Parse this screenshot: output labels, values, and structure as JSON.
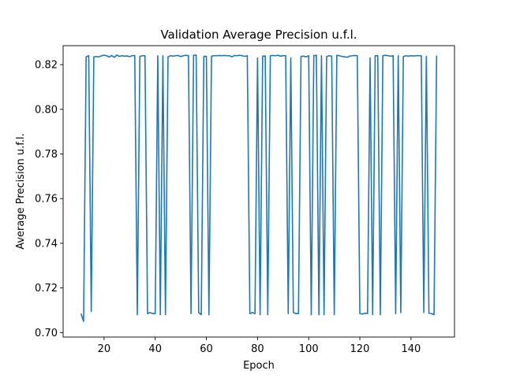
{
  "chart_data": {
    "type": "line",
    "title": "Validation Average Precision u.f.l.",
    "xlabel": "Epoch",
    "ylabel": "Average Precision u.f.l.",
    "xlim": [
      4,
      157
    ],
    "ylim": [
      0.698,
      0.8285
    ],
    "xticks": [
      20,
      40,
      60,
      80,
      100,
      120,
      140
    ],
    "yticks": [
      0.7,
      0.72,
      0.74,
      0.76,
      0.78,
      0.8,
      0.82
    ],
    "ytick_labels": [
      "0.70",
      "0.72",
      "0.74",
      "0.76",
      "0.78",
      "0.80",
      "0.82"
    ],
    "grid": false,
    "line_color": "#1f77b4",
    "series": [
      {
        "x": [
          11,
          12,
          13,
          14,
          15,
          16,
          17,
          18,
          19,
          20,
          21,
          22,
          23,
          24,
          25,
          26,
          27,
          28,
          29,
          30,
          31,
          32,
          33,
          34,
          35,
          36,
          37,
          38,
          39,
          40,
          41,
          42,
          43,
          44,
          45,
          46,
          47,
          48,
          49,
          50,
          51,
          52,
          53,
          54,
          55,
          56,
          57,
          58,
          59,
          60,
          61,
          62,
          63,
          64,
          65,
          66,
          67,
          68,
          69,
          70,
          71,
          72,
          73,
          74,
          75,
          76,
          77,
          78,
          79,
          80,
          81,
          82,
          83,
          84,
          85,
          86,
          87,
          88,
          89,
          90,
          91,
          92,
          93,
          94,
          95,
          96,
          97,
          98,
          99,
          100,
          101,
          102,
          103,
          104,
          105,
          106,
          107,
          108,
          109,
          110,
          111,
          112,
          113,
          114,
          115,
          116,
          117,
          118,
          119,
          120,
          121,
          122,
          123,
          124,
          125,
          126,
          127,
          128,
          129,
          130,
          131,
          132,
          133,
          134,
          135,
          136,
          137,
          138,
          139,
          140,
          141,
          142,
          143,
          144,
          145,
          146,
          147,
          148,
          149,
          150
        ],
        "y": [
          0.7085,
          0.705,
          0.8235,
          0.824,
          0.7095,
          0.8235,
          0.8236,
          0.8235,
          0.824,
          0.8242,
          0.824,
          0.8234,
          0.8241,
          0.8233,
          0.8243,
          0.8237,
          0.824,
          0.8238,
          0.8239,
          0.8236,
          0.824,
          0.8241,
          0.708,
          0.8237,
          0.824,
          0.824,
          0.7085,
          0.709,
          0.7085,
          0.7085,
          0.824,
          0.708,
          0.824,
          0.708,
          0.8235,
          0.824,
          0.8238,
          0.824,
          0.8241,
          0.8236,
          0.824,
          0.8242,
          0.824,
          0.7085,
          0.8242,
          0.8243,
          0.709,
          0.708,
          0.8237,
          0.8237,
          0.708,
          0.8238,
          0.824,
          0.824,
          0.8241,
          0.824,
          0.8241,
          0.824,
          0.824,
          0.8235,
          0.8241,
          0.824,
          0.8242,
          0.824,
          0.8237,
          0.824,
          0.7085,
          0.709,
          0.7085,
          0.823,
          0.708,
          0.8238,
          0.8239,
          0.708,
          0.824,
          0.8241,
          0.824,
          0.8242,
          0.8238,
          0.824,
          0.824,
          0.7085,
          0.823,
          0.709,
          0.7085,
          0.7085,
          0.8237,
          0.8238,
          0.8235,
          0.824,
          0.708,
          0.824,
          0.8242,
          0.708,
          0.824,
          0.708,
          0.8236,
          0.824,
          0.8238,
          0.708,
          0.8242,
          0.824,
          0.8237,
          0.8235,
          0.8233,
          0.8238,
          0.824,
          0.8241,
          0.824,
          0.7085,
          0.7083,
          0.7087,
          0.7085,
          0.823,
          0.708,
          0.824,
          0.824,
          0.708,
          0.824,
          0.8242,
          0.824,
          0.8238,
          0.824,
          0.7085,
          0.824,
          0.709,
          0.8236,
          0.824,
          0.8238,
          0.824,
          0.8239,
          0.824,
          0.824,
          0.824,
          0.709,
          0.8237,
          0.7087,
          0.7085,
          0.708,
          0.824
        ]
      }
    ]
  }
}
